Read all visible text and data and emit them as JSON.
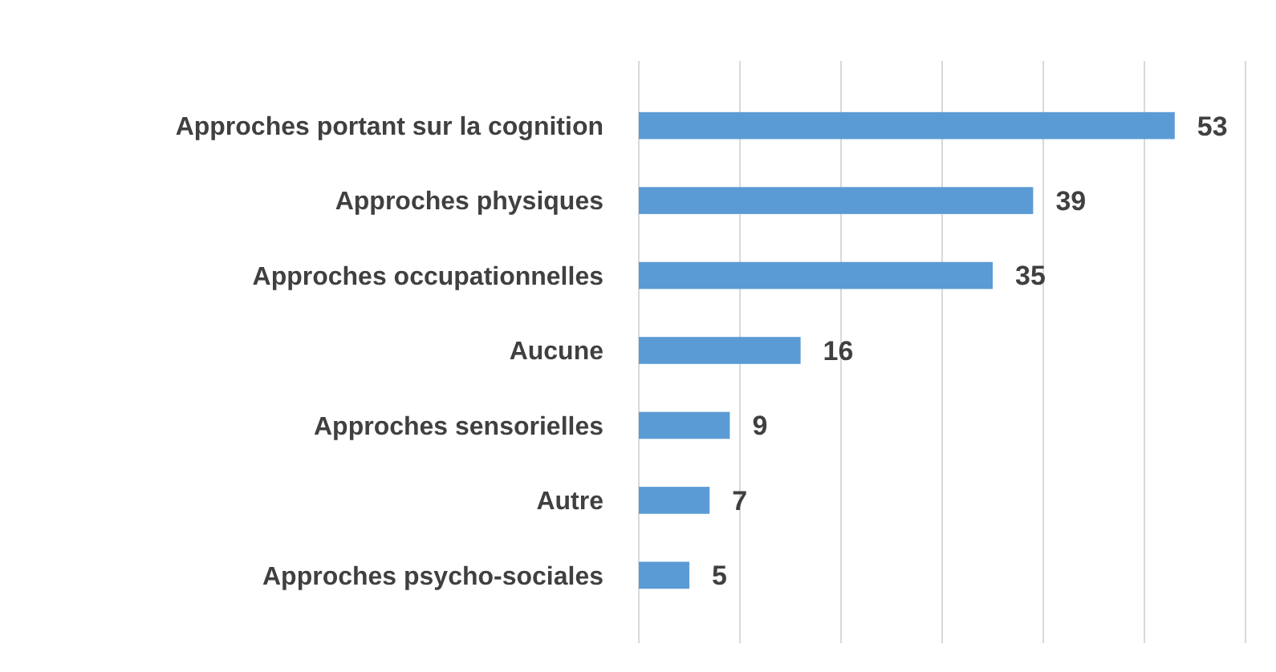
{
  "chart_data": {
    "type": "bar",
    "orientation": "horizontal",
    "categories": [
      "Approches portant sur la cognition",
      "Approches physiques",
      "Approches occupationnelles",
      "Aucune",
      "Approches sensorielles",
      "Autre",
      "Approches psycho-sociales"
    ],
    "values": [
      53,
      39,
      35,
      16,
      9,
      7,
      5
    ],
    "color": "#5b9bd5",
    "data_labels": true,
    "xlim": [
      0,
      60
    ],
    "xticks": [
      {
        "value": 0,
        "label": null
      },
      {
        "value": 10,
        "label": null
      },
      {
        "value": 20,
        "label": null
      },
      {
        "value": 30,
        "label": null
      },
      {
        "value": 40,
        "label": null
      },
      {
        "value": 50,
        "label": null
      },
      {
        "value": 60,
        "label": null
      }
    ],
    "grid": "x",
    "tick_labels": "y"
  }
}
